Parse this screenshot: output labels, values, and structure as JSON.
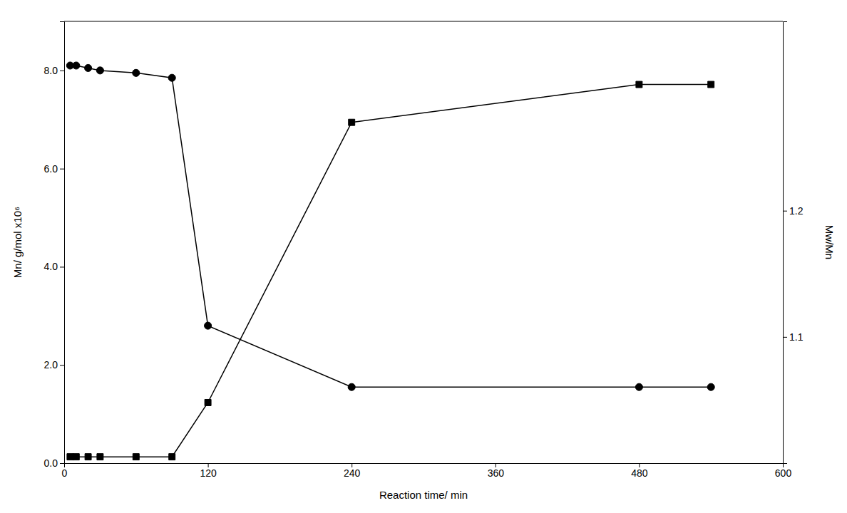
{
  "chart_data": {
    "type": "line",
    "x": [
      5,
      10,
      20,
      30,
      60,
      90,
      120,
      240,
      480,
      540
    ],
    "series": [
      {
        "values": [
          8.1,
          8.1,
          8.05,
          8.0,
          7.95,
          7.85,
          2.8,
          1.55,
          1.55,
          1.55
        ],
        "color": "#000000",
        "marker": "circle"
      },
      {
        "values": [
          1.005,
          1.005,
          1.005,
          1.005,
          1.005,
          1.005,
          1.048,
          1.27,
          1.3,
          1.3
        ],
        "color": "#000000",
        "marker": "square",
        "axis": "y2"
      }
    ],
    "xlabel": "Reaction time/ min",
    "ylabel": "Mn/ g/mol x10⁶",
    "y2label": "Mw/Mn",
    "xlim": [
      0,
      600
    ],
    "xticks": [
      0,
      120,
      240,
      360,
      480,
      600
    ],
    "ylim": [
      0.0,
      9.0
    ],
    "yticks": [
      {
        "value": 0.0,
        "label": "0.0"
      },
      {
        "value": 2.0,
        "label": "2.0"
      },
      {
        "value": 4.0,
        "label": "4.0"
      },
      {
        "value": 6.0,
        "label": "6.0"
      },
      {
        "value": 8.0,
        "label": "8.0"
      }
    ],
    "y2lim": [
      1.0,
      1.35
    ],
    "y2ticks": [
      1.1,
      1.2
    ],
    "grid": false
  }
}
